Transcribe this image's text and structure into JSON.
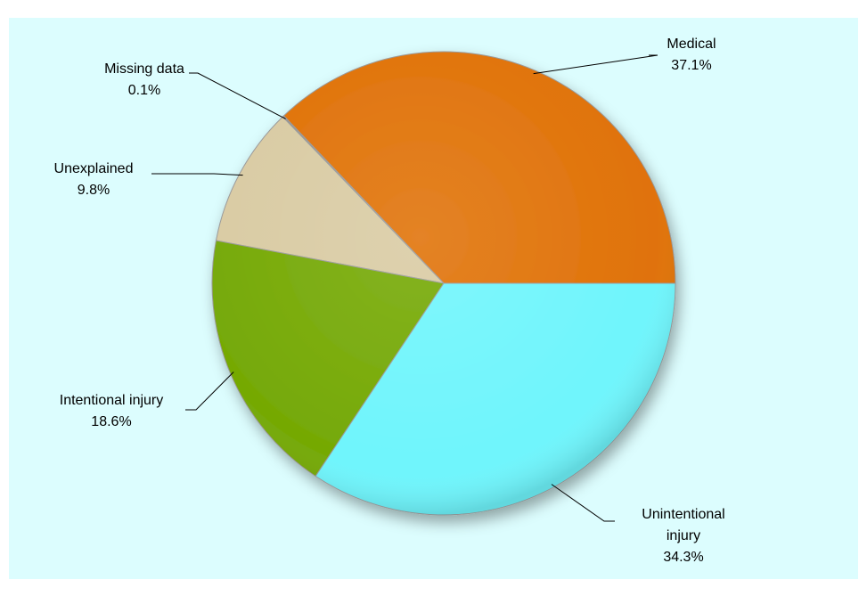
{
  "chart_data": {
    "type": "pie",
    "categories": [
      "Medical",
      "Missing data",
      "Unexplained",
      "Intentional injury",
      "Unintentional injury"
    ],
    "values": [
      37.1,
      0.1,
      9.8,
      18.6,
      34.3
    ],
    "value_labels": [
      "37.1%",
      "0.1%",
      "9.8%",
      "18.6%",
      "34.3%"
    ],
    "colors": [
      "#e07208",
      "#8c8c8c",
      "#d9cba3",
      "#75a905",
      "#6ff5fc"
    ]
  }
}
